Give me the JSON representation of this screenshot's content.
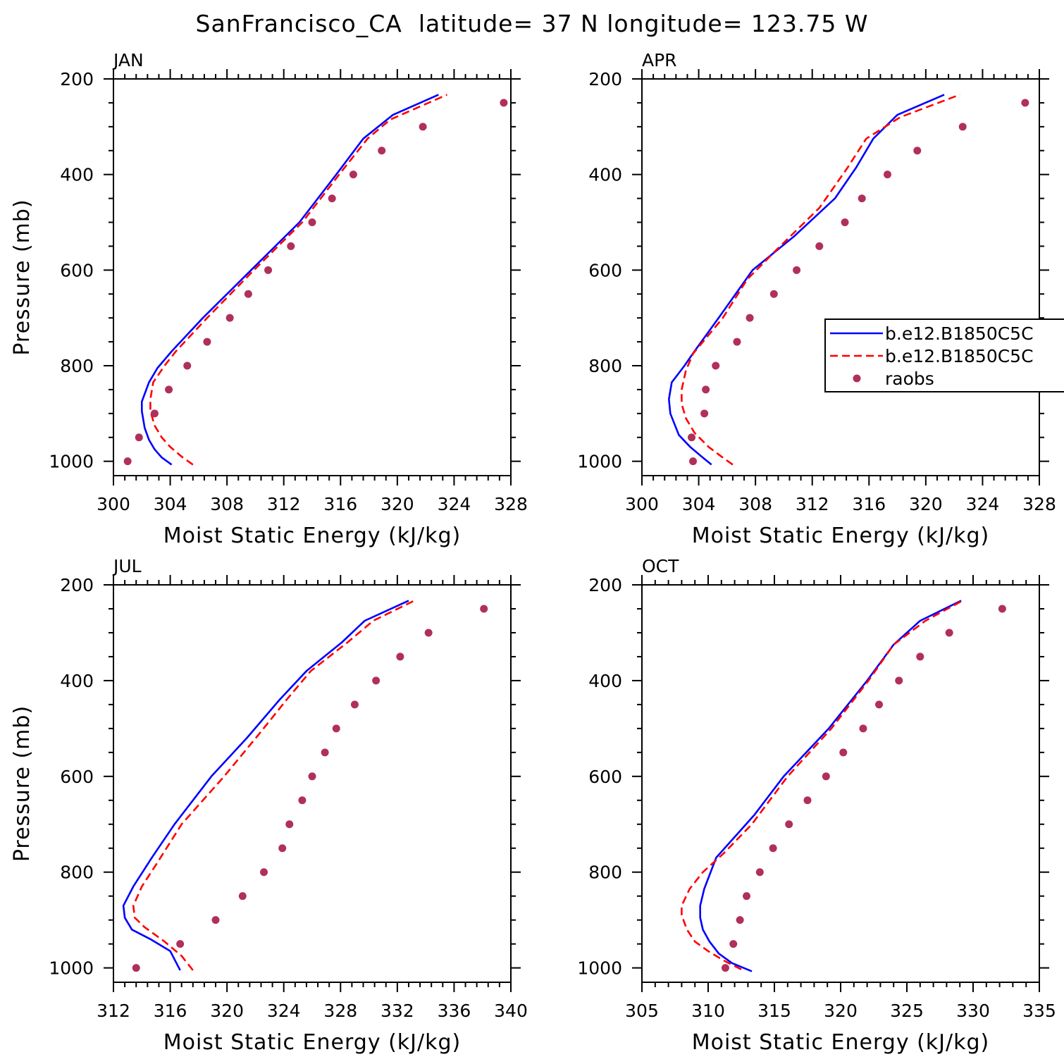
{
  "title": "SanFrancisco_CA  latitude= 37 N longitude= 123.75 W",
  "chart_data": [
    {
      "type": "line",
      "panel_label": "JAN",
      "xlabel": "Moist Static Energy (kJ/kg)",
      "ylabel": "Pressure (mb)",
      "xlim": [
        300,
        328
      ],
      "xticks": [
        300,
        304,
        308,
        312,
        316,
        320,
        324,
        328
      ],
      "xtick_labels": [
        "300",
        "304",
        "308",
        "312",
        "316",
        "320",
        "324",
        "328"
      ],
      "ylim": [
        1030,
        200
      ],
      "yticks": [
        200,
        400,
        600,
        800,
        1000
      ],
      "ytick_labels": [
        "200",
        "400",
        "600",
        "800",
        "1000"
      ],
      "series": [
        {
          "name": "b.e12.B1850C5C",
          "style": "solid",
          "color": "#0000ff",
          "values": [
            [
              304.1,
              1007
            ],
            [
              303.4,
              992
            ],
            [
              302.9,
              975
            ],
            [
              302.5,
              955
            ],
            [
              302.2,
              930
            ],
            [
              302.0,
              895
            ],
            [
              302.0,
              875
            ],
            [
              302.5,
              835
            ],
            [
              303.1,
              805
            ],
            [
              304.1,
              770
            ],
            [
              306.3,
              700
            ],
            [
              309.7,
              600
            ],
            [
              313.1,
              500
            ],
            [
              315.7,
              400
            ],
            [
              317.6,
              325
            ],
            [
              319.7,
              275
            ],
            [
              322.9,
              233
            ]
          ]
        },
        {
          "name": "b.e12.B1850C5C",
          "style": "dashed",
          "color": "#ff0000",
          "values": [
            [
              305.6,
              1007
            ],
            [
              304.8,
              990
            ],
            [
              304.0,
              970
            ],
            [
              303.4,
              950
            ],
            [
              302.9,
              925
            ],
            [
              302.6,
              895
            ],
            [
              302.6,
              870
            ],
            [
              302.8,
              835
            ],
            [
              303.6,
              800
            ],
            [
              304.4,
              770
            ],
            [
              306.6,
              700
            ],
            [
              309.9,
              600
            ],
            [
              313.3,
              500
            ],
            [
              315.9,
              400
            ],
            [
              317.9,
              325
            ],
            [
              319.5,
              285
            ],
            [
              323.5,
              233
            ]
          ]
        },
        {
          "name": "raobs",
          "style": "points",
          "color": "#b0305a",
          "values": [
            [
              301.0,
              1000
            ],
            [
              301.8,
              950
            ],
            [
              302.9,
              900
            ],
            [
              303.9,
              850
            ],
            [
              305.2,
              800
            ],
            [
              306.6,
              750
            ],
            [
              308.2,
              700
            ],
            [
              309.5,
              650
            ],
            [
              310.9,
              600
            ],
            [
              312.5,
              550
            ],
            [
              314.0,
              500
            ],
            [
              315.4,
              450
            ],
            [
              316.9,
              400
            ],
            [
              318.9,
              350
            ],
            [
              321.8,
              300
            ],
            [
              327.5,
              250
            ]
          ]
        }
      ]
    },
    {
      "type": "line",
      "panel_label": "APR",
      "xlabel": "Moist Static Energy (kJ/kg)",
      "ylabel": "",
      "xlim": [
        300,
        328
      ],
      "xticks": [
        300,
        304,
        308,
        312,
        316,
        320,
        324,
        328
      ],
      "xtick_labels": [
        "300",
        "304",
        "308",
        "312",
        "316",
        "320",
        "324",
        "328"
      ],
      "ylim": [
        1030,
        200
      ],
      "yticks": [
        200,
        400,
        600,
        800,
        1000
      ],
      "ytick_labels": [
        "200",
        "400",
        "600",
        "800",
        "1000"
      ],
      "series": [
        {
          "name": "b.e12.B1850C5C",
          "style": "solid",
          "color": "#0000ff",
          "values": [
            [
              304.9,
              1007
            ],
            [
              304.2,
              990
            ],
            [
              303.4,
              970
            ],
            [
              302.6,
              945
            ],
            [
              302.0,
              900
            ],
            [
              301.9,
              870
            ],
            [
              302.1,
              835
            ],
            [
              303.0,
              800
            ],
            [
              303.7,
              770
            ],
            [
              305.4,
              700
            ],
            [
              307.8,
              600
            ],
            [
              310.7,
              530
            ],
            [
              313.6,
              450
            ],
            [
              315.1,
              385
            ],
            [
              316.3,
              325
            ],
            [
              318.0,
              275
            ],
            [
              321.3,
              233
            ]
          ]
        },
        {
          "name": "b.e12.B1850C5C",
          "style": "dashed",
          "color": "#ff0000",
          "values": [
            [
              306.4,
              1007
            ],
            [
              305.6,
              990
            ],
            [
              304.7,
              970
            ],
            [
              303.7,
              940
            ],
            [
              303.1,
              910
            ],
            [
              302.8,
              880
            ],
            [
              302.8,
              850
            ],
            [
              303.1,
              810
            ],
            [
              303.6,
              775
            ],
            [
              305.7,
              700
            ],
            [
              307.4,
              620
            ],
            [
              309.4,
              560
            ],
            [
              312.5,
              470
            ],
            [
              314.5,
              385
            ],
            [
              315.8,
              325
            ],
            [
              318.2,
              280
            ],
            [
              322.4,
              233
            ]
          ]
        },
        {
          "name": "raobs",
          "style": "points",
          "color": "#b0305a",
          "values": [
            [
              303.6,
              1000
            ],
            [
              303.5,
              950
            ],
            [
              304.4,
              900
            ],
            [
              304.5,
              850
            ],
            [
              305.2,
              800
            ],
            [
              306.7,
              750
            ],
            [
              307.6,
              700
            ],
            [
              309.3,
              650
            ],
            [
              310.9,
              600
            ],
            [
              312.5,
              550
            ],
            [
              314.3,
              500
            ],
            [
              315.5,
              450
            ],
            [
              317.3,
              400
            ],
            [
              319.4,
              350
            ],
            [
              322.6,
              300
            ],
            [
              327.0,
              250
            ]
          ]
        }
      ]
    },
    {
      "type": "line",
      "panel_label": "JUL",
      "xlabel": "Moist Static Energy (kJ/kg)",
      "ylabel": "Pressure (mb)",
      "xlim": [
        312,
        340
      ],
      "xticks": [
        312,
        316,
        320,
        324,
        328,
        332,
        336,
        340
      ],
      "xtick_labels": [
        "312",
        "316",
        "320",
        "324",
        "328",
        "332",
        "336",
        "340"
      ],
      "ylim": [
        1030,
        200
      ],
      "yticks": [
        200,
        400,
        600,
        800,
        1000
      ],
      "ytick_labels": [
        "200",
        "400",
        "600",
        "800",
        "1000"
      ],
      "series": [
        {
          "name": "b.e12.B1850C5C",
          "style": "solid",
          "color": "#0000ff",
          "values": [
            [
              316.7,
              1005
            ],
            [
              316.0,
              965
            ],
            [
              314.6,
              940
            ],
            [
              313.3,
              920
            ],
            [
              312.8,
              895
            ],
            [
              312.7,
              870
            ],
            [
              313.4,
              830
            ],
            [
              314.7,
              770
            ],
            [
              316.3,
              700
            ],
            [
              318.9,
              600
            ],
            [
              321.4,
              520
            ],
            [
              323.7,
              440
            ],
            [
              325.6,
              380
            ],
            [
              328.1,
              320
            ],
            [
              329.7,
              275
            ],
            [
              332.8,
              233
            ]
          ]
        },
        {
          "name": "b.e12.B1850C5C",
          "style": "dashed",
          "color": "#ff0000",
          "values": [
            [
              317.6,
              1005
            ],
            [
              316.8,
              975
            ],
            [
              315.6,
              945
            ],
            [
              314.2,
              915
            ],
            [
              313.5,
              895
            ],
            [
              313.4,
              870
            ],
            [
              314.0,
              830
            ],
            [
              315.1,
              780
            ],
            [
              316.8,
              700
            ],
            [
              319.8,
              600
            ],
            [
              322.3,
              510
            ],
            [
              324.2,
              440
            ],
            [
              325.9,
              380
            ],
            [
              328.5,
              320
            ],
            [
              330.3,
              275
            ],
            [
              333.2,
              233
            ]
          ]
        },
        {
          "name": "raobs",
          "style": "points",
          "color": "#b0305a",
          "values": [
            [
              313.6,
              1000
            ],
            [
              316.7,
              950
            ],
            [
              319.2,
              900
            ],
            [
              321.1,
              850
            ],
            [
              322.6,
              800
            ],
            [
              323.9,
              750
            ],
            [
              324.4,
              700
            ],
            [
              325.3,
              650
            ],
            [
              326.0,
              600
            ],
            [
              326.9,
              550
            ],
            [
              327.7,
              500
            ],
            [
              329.0,
              450
            ],
            [
              330.5,
              400
            ],
            [
              332.2,
              350
            ],
            [
              334.2,
              300
            ],
            [
              338.1,
              250
            ]
          ]
        }
      ]
    },
    {
      "type": "line",
      "panel_label": "OCT",
      "xlabel": "Moist Static Energy (kJ/kg)",
      "ylabel": "",
      "xlim": [
        305,
        335
      ],
      "xticks": [
        305,
        310,
        315,
        320,
        325,
        330,
        335
      ],
      "xtick_labels": [
        "305",
        "310",
        "315",
        "320",
        "325",
        "330",
        "335"
      ],
      "ylim": [
        1030,
        200
      ],
      "yticks": [
        200,
        400,
        600,
        800,
        1000
      ],
      "ytick_labels": [
        "200",
        "400",
        "600",
        "800",
        "1000"
      ],
      "series": [
        {
          "name": "b.e12.B1850C5C",
          "style": "solid",
          "color": "#0000ff",
          "values": [
            [
              313.3,
              1007
            ],
            [
              311.8,
              990
            ],
            [
              310.8,
              970
            ],
            [
              310.1,
              945
            ],
            [
              309.6,
              920
            ],
            [
              309.4,
              895
            ],
            [
              309.4,
              870
            ],
            [
              309.7,
              835
            ],
            [
              310.6,
              770
            ],
            [
              313.5,
              680
            ],
            [
              315.7,
              600
            ],
            [
              319.1,
              500
            ],
            [
              322.0,
              400
            ],
            [
              324.0,
              325
            ],
            [
              326.0,
              275
            ],
            [
              329.1,
              233
            ]
          ]
        },
        {
          "name": "b.e12.B1850C5C",
          "style": "dashed",
          "color": "#ff0000",
          "values": [
            [
              312.5,
              1003
            ],
            [
              311.2,
              985
            ],
            [
              310.0,
              965
            ],
            [
              309.0,
              945
            ],
            [
              308.4,
              920
            ],
            [
              308.0,
              890
            ],
            [
              308.0,
              870
            ],
            [
              308.6,
              835
            ],
            [
              309.6,
              800
            ],
            [
              311.2,
              760
            ],
            [
              313.3,
              700
            ],
            [
              316.0,
              600
            ],
            [
              319.3,
              500
            ],
            [
              322.1,
              400
            ],
            [
              324.0,
              325
            ],
            [
              326.4,
              275
            ],
            [
              329.2,
              233
            ]
          ]
        },
        {
          "name": "raobs",
          "style": "points",
          "color": "#b0305a",
          "values": [
            [
              311.3,
              1000
            ],
            [
              311.9,
              950
            ],
            [
              312.4,
              900
            ],
            [
              312.9,
              850
            ],
            [
              313.9,
              800
            ],
            [
              314.9,
              750
            ],
            [
              316.1,
              700
            ],
            [
              317.5,
              650
            ],
            [
              318.9,
              600
            ],
            [
              320.2,
              550
            ],
            [
              321.7,
              500
            ],
            [
              322.9,
              450
            ],
            [
              324.4,
              400
            ],
            [
              326.0,
              350
            ],
            [
              328.2,
              300
            ],
            [
              332.2,
              250
            ]
          ]
        }
      ]
    }
  ],
  "legend": {
    "location": "right of APR panel",
    "entries": [
      {
        "label": "b.e12.B1850C5C",
        "style": "solid",
        "color": "#0000ff"
      },
      {
        "label": "b.e12.B1850C5C",
        "style": "dashed",
        "color": "#ff0000"
      },
      {
        "label": "raobs",
        "style": "points",
        "color": "#b0305a"
      }
    ]
  }
}
